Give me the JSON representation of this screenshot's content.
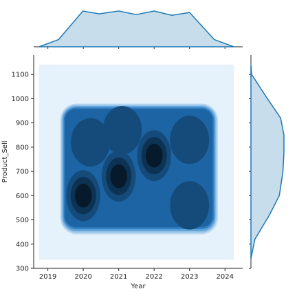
{
  "chart_data": {
    "type": "heatmap",
    "subtype": "kde-jointplot",
    "title": "",
    "xlabel": "Year",
    "ylabel": "Product_Sell",
    "xlim": [
      2018.6,
      2024.5
    ],
    "ylim": [
      300,
      1180
    ],
    "xticks": [
      2019,
      2020,
      2021,
      2022,
      2023,
      2024
    ],
    "xtick_labels": [
      "2019",
      "2020",
      "2021",
      "2022",
      "2023",
      "2024"
    ],
    "yticks": [
      300,
      400,
      500,
      600,
      700,
      800,
      900,
      1000,
      1100
    ],
    "ytick_labels": [
      "300",
      "400",
      "500",
      "600",
      "700",
      "800",
      "900",
      "1000",
      "1100"
    ],
    "color": "#1f77b4",
    "kde_domain": {
      "x": [
        2018.75,
        2024.25
      ],
      "y": [
        335,
        1140
      ]
    },
    "density_peaks": [
      {
        "x": 2020.0,
        "y": 600,
        "level": 1.0
      },
      {
        "x": 2021.0,
        "y": 680,
        "level": 0.82
      },
      {
        "x": 2022.0,
        "y": 765,
        "level": 0.78
      },
      {
        "x": 2020.2,
        "y": 820,
        "level": 0.5
      },
      {
        "x": 2021.1,
        "y": 870,
        "level": 0.5
      },
      {
        "x": 2023.0,
        "y": 830,
        "level": 0.5
      },
      {
        "x": 2023.0,
        "y": 560,
        "level": 0.45
      }
    ],
    "x_marginal": {
      "x": [
        2018.75,
        2019.3,
        2019.99,
        2020.45,
        2021.0,
        2021.5,
        2022.0,
        2022.5,
        2023.0,
        2023.7,
        2024.25
      ],
      "density": [
        0.0,
        0.2,
        1.0,
        0.92,
        1.0,
        0.9,
        1.0,
        0.88,
        0.96,
        0.2,
        0.0
      ]
    },
    "y_marginal": {
      "y": [
        340,
        420,
        520,
        600,
        700,
        780,
        850,
        920,
        1000,
        1100,
        1140
      ],
      "density": [
        0.0,
        0.12,
        0.56,
        0.86,
        0.97,
        1.0,
        1.0,
        0.9,
        0.5,
        0.02,
        0.0
      ]
    }
  }
}
